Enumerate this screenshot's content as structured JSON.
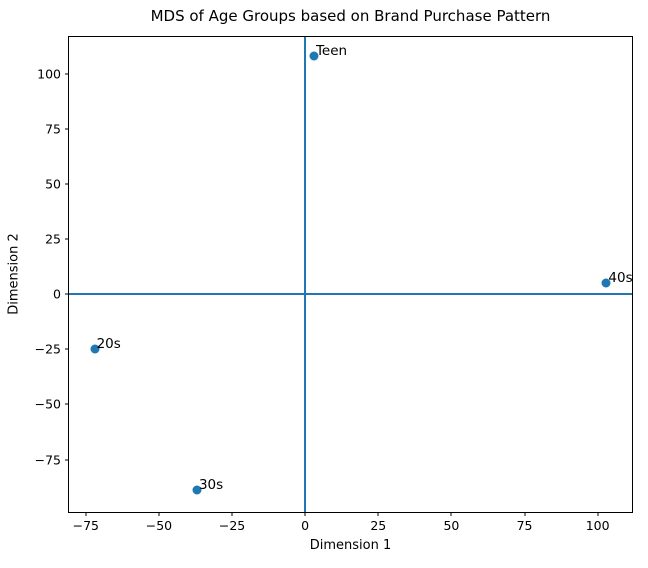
{
  "chart_data": {
    "type": "scatter",
    "title": "MDS of Age Groups based on Brand Purchase Pattern",
    "xlabel": "Dimension 1",
    "ylabel": "Dimension 2",
    "xlim": [
      -80.75,
      111.75
    ],
    "ylim": [
      -98.8,
      116.8
    ],
    "xticks": [
      -75,
      -50,
      -25,
      0,
      25,
      50,
      75,
      100
    ],
    "yticks": [
      -75,
      -50,
      -25,
      0,
      25,
      50,
      75,
      100
    ],
    "points": [
      {
        "label": "Teen",
        "x": 3,
        "y": 108
      },
      {
        "label": "20s",
        "x": -72,
        "y": -25
      },
      {
        "label": "30s",
        "x": -37,
        "y": -89
      },
      {
        "label": "40s",
        "x": 103,
        "y": 5
      }
    ],
    "marker_color": "#1f77b4",
    "crosshair_color": "#1f77b4",
    "axline_x": 0,
    "axline_y": 0,
    "grid": false,
    "legend": null
  }
}
